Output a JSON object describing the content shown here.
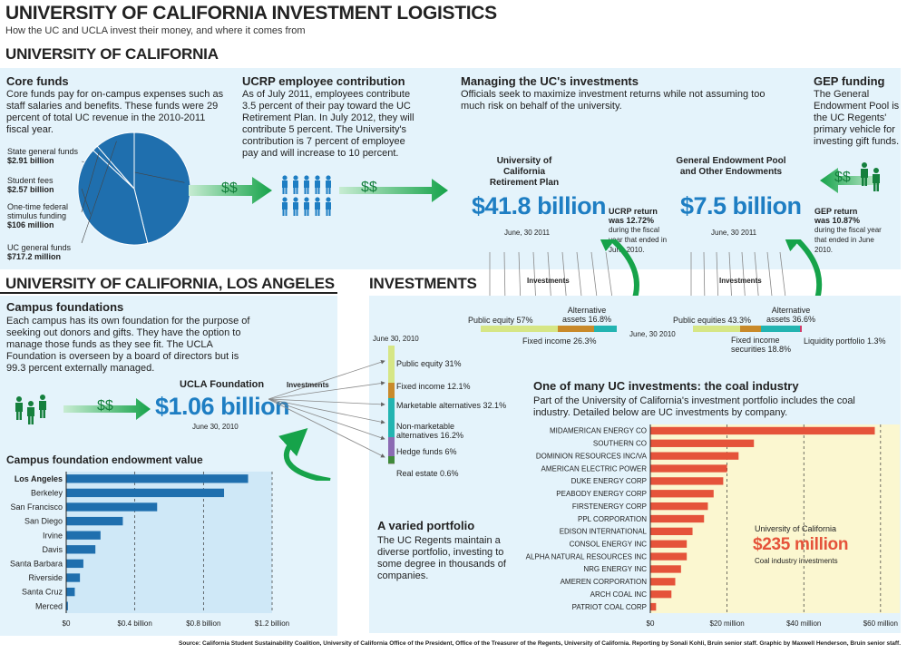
{
  "header": {
    "title": "UNIVERSITY OF CALIFORNIA INVESTMENT LOGISTICS",
    "subtitle": "How the UC and UCLA invest their money, and where it comes from",
    "uc_section": "UNIVERSITY OF CALIFORNIA",
    "ucla_section": "UNIVERSITY OF CALIFORNIA, LOS ANGELES",
    "investments_section": "INVESTMENTS"
  },
  "core_funds": {
    "title": "Core funds",
    "text": "Core funds pay for on-campus expenses such as staff salaries and benefits. These funds were 29 percent of total UC revenue in the 2010-2011 fiscal year.",
    "slices": [
      {
        "label": "State general funds",
        "value_label": "$2.91 billion",
        "value": 2.91
      },
      {
        "label": "Student fees",
        "value_label": "$2.57 billion",
        "value": 2.57
      },
      {
        "label": "One-time federal stimulus funding",
        "value_label": "$106 million",
        "value": 0.106
      },
      {
        "label": "UC general funds",
        "value_label": "$717.2 million",
        "value": 0.7172
      }
    ]
  },
  "ucrp": {
    "title": "UCRP employee contribution",
    "text": "As of July 2011, employees contribute 3.5 percent of their pay toward the UC Retirement Plan. In July 2012, they will contribute 5 percent. The University's contribution is 7 percent of employee pay and will increase to 10 percent."
  },
  "managing": {
    "title": "Managing the UC's investments",
    "text": "Officials seek to maximize investment returns while not assuming too much risk on behalf of the university."
  },
  "gep_funding": {
    "title": "GEP funding",
    "text": "The General Endowment Pool is the UC Regents' primary vehicle for investing gift funds."
  },
  "dollar_sign": "$$",
  "investments_word": "Investments",
  "retirement": {
    "name1": "University of California",
    "name2": "Retirement Plan",
    "amount": "$41.8 billion",
    "date": "June, 30 2011",
    "return_title1": "UCRP return",
    "return_title2": "was 12.72%",
    "return_text": "during the fiscal year that ended in June 2010.",
    "bar_date": "June, 30 2010",
    "labels": {
      "equity": "Public equity 57%",
      "alt1": "Alternative",
      "alt2": "assets 16.8%",
      "fixed": "Fixed income  26.3%"
    },
    "segments": [
      {
        "name": "Public equity",
        "value": 57,
        "color": "#d6e685"
      },
      {
        "name": "Fixed income",
        "value": 26.3,
        "color": "#c98a2a"
      },
      {
        "name": "Alternative assets",
        "value": 16.8,
        "color": "#23b4b1"
      }
    ]
  },
  "gep": {
    "name1": "General Endowment Pool",
    "name2": "and Other Endowments",
    "amount": "$7.5 billion",
    "date": "June, 30 2011",
    "return_title1": "GEP return",
    "return_title2": "was 10.87%",
    "return_text": "during the fiscal year that ended in June 2010.",
    "labels": {
      "equity": "Public equities 43.3%",
      "alt1": "Alternative",
      "alt2": "assets 36.6%",
      "fixed1": "Fixed income",
      "fixed2": "securities 18.8%",
      "liq": "Liquidity portfolio 1.3%"
    },
    "segments": [
      {
        "name": "Public equities",
        "value": 43.3,
        "color": "#d6e685"
      },
      {
        "name": "Fixed income securities",
        "value": 18.8,
        "color": "#c98a2a"
      },
      {
        "name": "Alternative assets",
        "value": 36.6,
        "color": "#23b4b1"
      },
      {
        "name": "Liquidity portfolio",
        "value": 1.3,
        "color": "#d23b6a"
      }
    ]
  },
  "campus": {
    "title": "Campus foundations",
    "text": "Each campus has its own foundation for the purpose of seeking out donors and gifts. They have the option to manage those funds as they see fit. The UCLA Foundation is overseen by a board of directors but is 99.3 percent externally managed.",
    "ucla_title": "UCLA Foundation",
    "ucla_amount": "$1.06 billion",
    "ucla_date": "June 30, 2010"
  },
  "ucla_portfolio": {
    "date": "June 30, 2010",
    "segments": [
      {
        "label": "Public equity 31%",
        "value": 31,
        "color": "#d6e685"
      },
      {
        "label": "Fixed income  12.1%",
        "value": 12.1,
        "color": "#c98a2a"
      },
      {
        "label": "Marketable alternatives 32.1%",
        "value": 32.1,
        "color": "#23b4b1"
      },
      {
        "label1": "Non-marketable",
        "label2": "alternatives 16.2%",
        "value": 16.2,
        "color": "#8b6bb3"
      },
      {
        "label": "Hedge funds 6%",
        "value": 6,
        "color": "#3f8a3a"
      },
      {
        "label": "Real estate 0.6%",
        "value": 0.6,
        "color": "#b5b5b5"
      }
    ]
  },
  "varied": {
    "title": "A varied portfolio",
    "text": "The UC Regents maintain a diverse portfolio, investing to some degree in thousands of companies."
  },
  "coal": {
    "title": "One of many UC investments: the coal industry",
    "text": "Part of the University of California's investment portfolio includes the coal industry. Detailed below are UC investments by company.",
    "callout_title": "University  of  California",
    "callout_amount": "$235 million",
    "callout_sub": "Coal  industry  investments"
  },
  "chart_data": [
    {
      "type": "bar",
      "title": "Campus foundation endowment value",
      "orientation": "horizontal",
      "categories": [
        "Los Angeles",
        "Berkeley",
        "San Francisco",
        "San Diego",
        "Irvine",
        "Davis",
        "Santa Barbara",
        "Riverside",
        "Santa Cruz",
        "Merced"
      ],
      "values": [
        1.06,
        0.92,
        0.53,
        0.33,
        0.2,
        0.17,
        0.1,
        0.08,
        0.05,
        0.01
      ],
      "xlim": [
        0,
        1.2
      ],
      "xticks": [
        "$0",
        "$0.4 billion",
        "$0.8 billion",
        "$1.2 billion"
      ],
      "unit": "billion USD",
      "color": "#1f6fae"
    },
    {
      "type": "bar",
      "title": "UC investments by company (coal industry)",
      "orientation": "horizontal",
      "categories": [
        "MIDAMERICAN ENERGY CO",
        "SOUTHERN CO",
        "DOMINION RESOURCES INC/VA",
        "AMERICAN ELECTRIC POWER",
        "DUKE ENERGY CORP",
        "PEABODY ENERGY CORP",
        "FIRSTENERGY CORP",
        "PPL CORPORATION",
        "EDISON INTERNATIONAL",
        "CONSOL ENERGY INC",
        "ALPHA NATURAL RESOURCES INC",
        "NRG ENERGY INC",
        "AMEREN CORPORATION",
        "ARCH COAL INC",
        "PATRIOT COAL CORP"
      ],
      "values": [
        58.5,
        27,
        23,
        20,
        19,
        16.5,
        15,
        14,
        11,
        9.5,
        9.5,
        8,
        6.5,
        5.5,
        1.5
      ],
      "xlim": [
        0,
        65
      ],
      "xticks": [
        "$0",
        "$20 million",
        "$40 million",
        "$60 million"
      ],
      "unit": "million USD",
      "color": "#e5533a"
    }
  ],
  "footer": {
    "source": "Source: California Student Sustainability Coalition, University of California Office of the President, Office of the Treasurer of the Regents, University of California. Reporting by Sonali Kohli, Bruin senior staff. Graphic by Maxwell Henderson, Bruin senior staff."
  }
}
